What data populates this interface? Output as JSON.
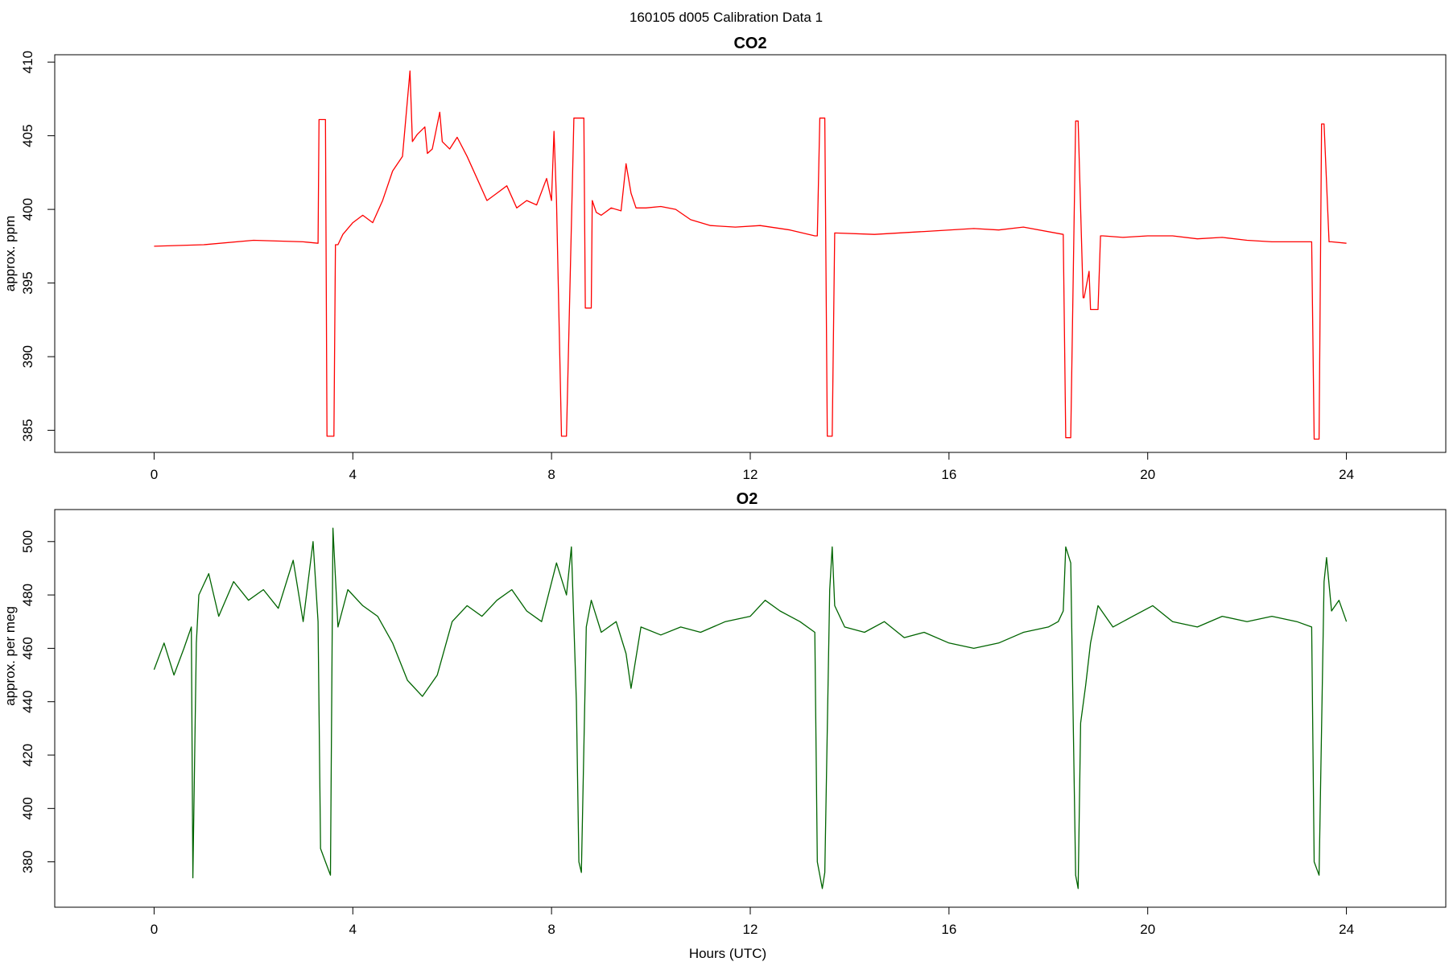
{
  "page_title": "160105   d005   Calibration Data 1",
  "chart_data": [
    {
      "type": "line",
      "title": "CO2",
      "xlabel": "",
      "ylabel": "approx. ppm",
      "xlim": [
        -2,
        26
      ],
      "ylim": [
        383.5,
        410.5
      ],
      "xticks": [
        0,
        4,
        8,
        12,
        16,
        20,
        24
      ],
      "yticks": [
        385,
        390,
        395,
        400,
        405,
        410
      ],
      "grid": false,
      "color": "#ff0000",
      "series": [
        {
          "x": [
            0,
            1,
            2,
            3,
            3.3,
            3.32,
            3.35,
            3.45,
            3.48,
            3.5,
            3.62,
            3.65,
            3.7,
            3.8,
            4.0,
            4.2,
            4.4,
            4.6,
            4.8,
            5.0,
            5.15,
            5.2,
            5.3,
            5.45,
            5.5,
            5.6,
            5.75,
            5.8,
            5.95,
            6.1,
            6.3,
            6.5,
            6.7,
            6.9,
            7.1,
            7.3,
            7.5,
            7.7,
            7.9,
            8.0,
            8.05,
            8.1,
            8.2,
            8.25,
            8.3,
            8.45,
            8.5,
            8.65,
            8.68,
            8.8,
            8.82,
            8.9,
            9.0,
            9.2,
            9.4,
            9.5,
            9.6,
            9.7,
            9.9,
            10.2,
            10.5,
            10.8,
            11.2,
            11.7,
            12.2,
            12.8,
            13.3,
            13.35,
            13.4,
            13.5,
            13.55,
            13.65,
            13.7,
            14.5,
            15.5,
            16.5,
            17.0,
            17.5,
            18.3,
            18.35,
            18.45,
            18.55,
            18.6,
            18.7,
            18.72,
            18.82,
            18.85,
            18.9,
            19.0,
            19.05,
            19.1,
            19.5,
            20.0,
            20.5,
            21.0,
            21.5,
            22.0,
            22.5,
            23.3,
            23.35,
            23.45,
            23.5,
            23.55,
            23.65,
            23.7,
            24.0
          ],
          "y": [
            397.5,
            397.6,
            397.9,
            397.8,
            397.7,
            406.1,
            406.1,
            406.1,
            384.6,
            384.6,
            384.6,
            397.6,
            397.6,
            398.3,
            399.1,
            399.6,
            399.1,
            400.6,
            402.6,
            403.6,
            409.4,
            404.6,
            405.1,
            405.6,
            403.8,
            404.1,
            406.6,
            404.6,
            404.1,
            404.9,
            403.6,
            402.1,
            400.6,
            401.1,
            401.6,
            400.1,
            400.6,
            400.3,
            402.1,
            400.6,
            405.3,
            400.6,
            384.6,
            384.6,
            384.6,
            406.2,
            406.2,
            406.2,
            393.3,
            393.3,
            400.6,
            399.8,
            399.6,
            400.1,
            399.9,
            403.1,
            401.1,
            400.1,
            400.1,
            400.2,
            400.0,
            399.3,
            398.9,
            398.8,
            398.9,
            398.6,
            398.2,
            398.2,
            406.2,
            406.2,
            384.6,
            384.6,
            398.4,
            398.3,
            398.5,
            398.7,
            398.6,
            398.8,
            398.3,
            384.5,
            384.5,
            406.0,
            406.0,
            394.0,
            394.0,
            395.8,
            393.2,
            393.2,
            393.2,
            398.2,
            398.2,
            398.1,
            398.2,
            398.2,
            398.0,
            398.1,
            397.9,
            397.8,
            397.8,
            384.4,
            384.4,
            405.8,
            405.8,
            397.8,
            397.8,
            397.7
          ]
        }
      ]
    },
    {
      "type": "line",
      "title": "O2",
      "xlabel": "Hours (UTC)",
      "ylabel": "approx. per meg",
      "xlim": [
        -2,
        26
      ],
      "ylim": [
        363,
        512
      ],
      "xticks": [
        0,
        4,
        8,
        12,
        16,
        20,
        24
      ],
      "yticks": [
        380,
        400,
        420,
        440,
        460,
        480,
        500
      ],
      "grid": false,
      "color": "#006400",
      "series": [
        {
          "x": [
            0,
            0.2,
            0.4,
            0.6,
            0.75,
            0.78,
            0.85,
            0.9,
            1.1,
            1.3,
            1.6,
            1.9,
            2.2,
            2.5,
            2.8,
            3.0,
            3.2,
            3.3,
            3.35,
            3.45,
            3.55,
            3.6,
            3.7,
            3.9,
            4.2,
            4.5,
            4.8,
            5.1,
            5.4,
            5.7,
            6.0,
            6.3,
            6.6,
            6.9,
            7.2,
            7.5,
            7.8,
            8.1,
            8.3,
            8.4,
            8.5,
            8.55,
            8.6,
            8.7,
            8.8,
            9.0,
            9.3,
            9.5,
            9.6,
            9.8,
            10.2,
            10.6,
            11.0,
            11.5,
            12.0,
            12.3,
            12.6,
            13.0,
            13.3,
            13.35,
            13.45,
            13.5,
            13.6,
            13.65,
            13.7,
            13.9,
            14.3,
            14.7,
            15.1,
            15.5,
            16.0,
            16.5,
            17.0,
            17.5,
            18.0,
            18.2,
            18.3,
            18.35,
            18.45,
            18.55,
            18.6,
            18.65,
            18.75,
            18.85,
            19.0,
            19.3,
            19.7,
            20.1,
            20.5,
            21.0,
            21.5,
            22.0,
            22.5,
            23.0,
            23.3,
            23.35,
            23.45,
            23.55,
            23.6,
            23.7,
            23.85,
            24.0
          ],
          "y": [
            452,
            462,
            450,
            460,
            468,
            374,
            462,
            480,
            488,
            472,
            485,
            478,
            482,
            475,
            493,
            470,
            500,
            470,
            385,
            380,
            375,
            505,
            468,
            482,
            476,
            472,
            462,
            448,
            442,
            450,
            470,
            476,
            472,
            478,
            482,
            474,
            470,
            492,
            480,
            498,
            440,
            380,
            376,
            468,
            478,
            466,
            470,
            458,
            445,
            468,
            465,
            468,
            466,
            470,
            472,
            478,
            474,
            470,
            466,
            380,
            370,
            376,
            482,
            498,
            476,
            468,
            466,
            470,
            464,
            466,
            462,
            460,
            462,
            466,
            468,
            470,
            474,
            498,
            492,
            375,
            370,
            432,
            446,
            462,
            476,
            468,
            472,
            476,
            470,
            468,
            472,
            470,
            472,
            470,
            468,
            380,
            375,
            485,
            494,
            474,
            478,
            470
          ]
        }
      ]
    }
  ]
}
